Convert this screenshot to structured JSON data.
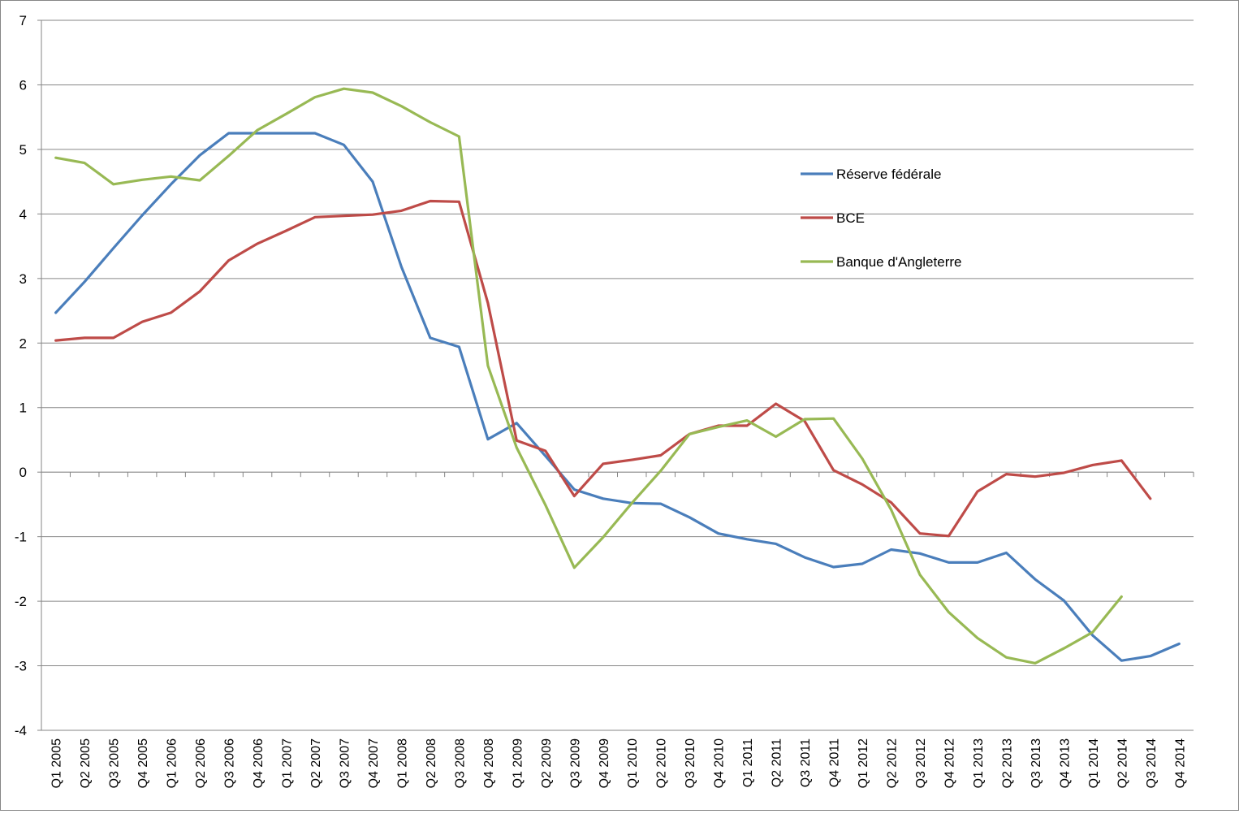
{
  "chart_data": {
    "type": "line",
    "title": "",
    "xlabel": "",
    "ylabel": "",
    "ylim": [
      -4,
      7
    ],
    "yticks": [
      -4,
      -3,
      -2,
      -1,
      0,
      1,
      2,
      3,
      4,
      5,
      6,
      7
    ],
    "ytick_labels": [
      "-4",
      "-3",
      "-2",
      "-1",
      "0",
      "1",
      "2",
      "3",
      "4",
      "5",
      "6",
      "7"
    ],
    "grid": true,
    "legend_position": "right",
    "categories": [
      "Q1 2005",
      "Q2 2005",
      "Q3 2005",
      "Q4 2005",
      "Q1 2006",
      "Q2 2006",
      "Q3 2006",
      "Q4 2006",
      "Q1 2007",
      "Q2 2007",
      "Q3 2007",
      "Q4 2007",
      "Q1 2008",
      "Q2 2008",
      "Q3 2008",
      "Q4 2008",
      "Q1 2009",
      "Q2 2009",
      "Q3 2009",
      "Q4 2009",
      "Q1 2010",
      "Q2 2010",
      "Q3 2010",
      "Q4 2010",
      "Q1 2011",
      "Q2 2011",
      "Q3 2011",
      "Q4 2011",
      "Q1 2012",
      "Q2 2012",
      "Q3 2012",
      "Q4 2012",
      "Q1 2013",
      "Q2 2013",
      "Q3 2013",
      "Q4 2013",
      "Q1 2014",
      "Q2 2014",
      "Q3 2014",
      "Q4 2014"
    ],
    "series": [
      {
        "name": "Réserve fédérale",
        "color": "#4a7ebb",
        "values": [
          2.47,
          2.95,
          3.47,
          3.98,
          4.46,
          4.91,
          5.25,
          5.25,
          5.25,
          5.25,
          5.07,
          4.5,
          3.18,
          2.08,
          1.94,
          0.51,
          0.76,
          0.25,
          -0.27,
          -0.41,
          -0.48,
          -0.49,
          -0.7,
          -0.95,
          -1.04,
          -1.11,
          -1.32,
          -1.47,
          -1.42,
          -1.2,
          -1.26,
          -1.4,
          -1.4,
          -1.25,
          -1.66,
          -1.99,
          -2.53,
          -2.92,
          -2.85,
          -2.66
        ]
      },
      {
        "name": "BCE",
        "color": "#be4b48",
        "values": [
          2.04,
          2.08,
          2.08,
          2.33,
          2.47,
          2.8,
          3.28,
          3.54,
          3.74,
          3.95,
          3.97,
          3.99,
          4.05,
          4.2,
          4.19,
          2.62,
          0.49,
          0.33,
          -0.37,
          0.13,
          0.19,
          0.26,
          0.59,
          0.72,
          0.72,
          1.06,
          0.79,
          0.03,
          -0.19,
          -0.47,
          -0.95,
          -0.99,
          -0.3,
          -0.03,
          -0.07,
          -0.01,
          0.11,
          0.18,
          -0.41,
          null
        ]
      },
      {
        "name": "Banque d'Angleterre",
        "color": "#98b954",
        "values": [
          4.87,
          4.79,
          4.46,
          4.53,
          4.58,
          4.52,
          4.9,
          5.3,
          5.55,
          5.81,
          5.94,
          5.88,
          5.67,
          5.42,
          5.2,
          1.65,
          0.38,
          -0.51,
          -1.48,
          -1.01,
          -0.48,
          0.02,
          0.59,
          0.7,
          0.8,
          0.55,
          0.82,
          0.83,
          0.21,
          -0.58,
          -1.59,
          -2.17,
          -2.57,
          -2.87,
          -2.96,
          -2.73,
          -2.48,
          -1.93,
          null,
          null
        ]
      }
    ]
  }
}
